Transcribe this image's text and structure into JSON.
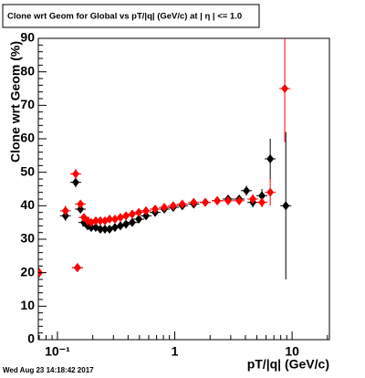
{
  "chart_data": {
    "type": "scatter",
    "title": "Clone wrt Geom for Global vs pT/|q| (GeV/c) at |  η | <= 1.0",
    "x_label": "pT/|q| (GeV/c)",
    "y_label": "Clone wrt Geom (%)",
    "timestamp": "Wed Aug 23 14:18:42 2017",
    "xlog": true,
    "xlim": [
      0.0687,
      20.8
    ],
    "ylim": [
      0,
      90
    ],
    "xticks": [
      {
        "value": 0.1,
        "label": "10⁻¹"
      },
      1,
      10
    ],
    "yticks": [
      0,
      10,
      20,
      30,
      40,
      50,
      60,
      70,
      80,
      90
    ],
    "series": [
      {
        "color": "#000000",
        "x": [
          0.117,
          0.143,
          0.148,
          0.157,
          0.168,
          0.181,
          0.194,
          0.212,
          0.232,
          0.254,
          0.278,
          0.309,
          0.344,
          0.384,
          0.434,
          0.493,
          0.569,
          0.68,
          0.814,
          0.97,
          1.16,
          1.45,
          1.82,
          2.3,
          2.85,
          3.54,
          4.08,
          4.63,
          5.53,
          6.51,
          8.84
        ],
        "values": [
          37,
          47,
          21.5,
          39,
          35,
          34,
          33.5,
          33.5,
          33,
          33,
          33,
          33.5,
          34,
          34.5,
          35,
          36,
          37,
          38,
          39,
          39.5,
          40,
          40.5,
          41,
          41.5,
          42,
          42,
          44.5,
          41,
          43,
          54,
          40
        ],
        "yerr": [
          1.5,
          1.5,
          1,
          1,
          0.8,
          0.8,
          0.8,
          0.8,
          0.8,
          0.8,
          0.8,
          0.8,
          0.8,
          0.8,
          0.8,
          0.8,
          0.8,
          0.8,
          0.8,
          0.8,
          0.8,
          0.8,
          0.8,
          0.8,
          0.8,
          0.8,
          1.5,
          1.5,
          2,
          6,
          22
        ]
      },
      {
        "color": "#ff0000",
        "x": [
          0.07,
          0.117,
          0.143,
          0.148,
          0.157,
          0.168,
          0.181,
          0.194,
          0.212,
          0.232,
          0.254,
          0.278,
          0.309,
          0.344,
          0.384,
          0.434,
          0.493,
          0.569,
          0.68,
          0.814,
          0.97,
          1.16,
          1.45,
          1.82,
          2.3,
          2.85,
          3.54,
          4.63,
          5.53,
          6.51,
          8.66
        ],
        "values": [
          20,
          38.5,
          49.5,
          21.5,
          40.5,
          36.5,
          35.5,
          35,
          35.5,
          35.5,
          35.5,
          36,
          36,
          36.5,
          37,
          37.5,
          38,
          38.5,
          39,
          39.5,
          40,
          40.5,
          41,
          41,
          41.5,
          41.5,
          41.5,
          42,
          41,
          44,
          75
        ],
        "yerr": [
          1.5,
          1.5,
          1.5,
          1,
          1,
          0.8,
          0.8,
          0.8,
          0.8,
          0.8,
          0.8,
          0.8,
          0.8,
          0.8,
          0.8,
          0.8,
          0.8,
          0.8,
          0.8,
          0.8,
          0.8,
          0.8,
          0.8,
          0.8,
          0.8,
          0.8,
          0.8,
          1.5,
          1.5,
          4,
          16
        ]
      }
    ]
  }
}
